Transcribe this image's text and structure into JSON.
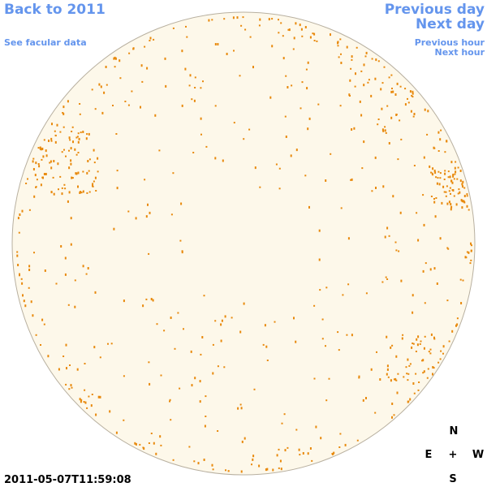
{
  "nav": {
    "back": "Back to 2011",
    "facular": "See facular data",
    "previous_day": "Previous day",
    "next_day": "Next day",
    "previous_hour": "Previous hour",
    "next_hour": "Next hour"
  },
  "timestamp": "2011-05-07T11:59:08",
  "compass": {
    "north": "N",
    "east": "E",
    "center": "+",
    "west": "W",
    "south": "S"
  }
}
